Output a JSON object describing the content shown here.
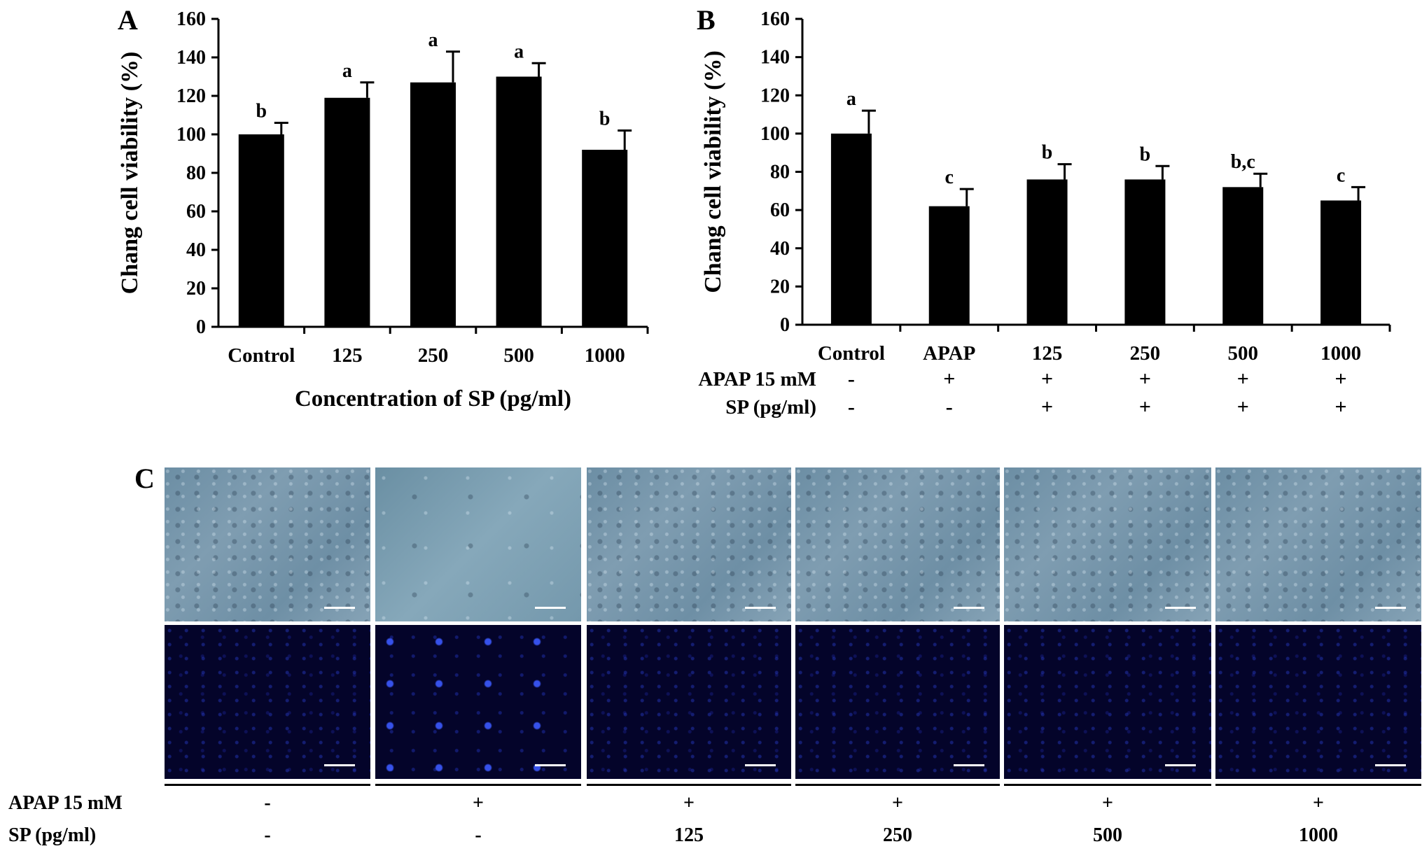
{
  "chart_data": [
    {
      "type": "bar",
      "panel_label": "A",
      "categories": [
        "Control",
        "125",
        "250",
        "500",
        "1000"
      ],
      "values": [
        100,
        119,
        127,
        130,
        92
      ],
      "errors": [
        6,
        8,
        16,
        7,
        10
      ],
      "significance": [
        "b",
        "a",
        "a",
        "a",
        "b"
      ],
      "xlabel": "Concentration of SP (pg/ml)",
      "ylabel": "Chang cell viability (%)",
      "ylim": [
        0,
        160
      ],
      "yticks": [
        "0",
        "20",
        "40",
        "60",
        "80",
        "100",
        "120",
        "140",
        "160"
      ],
      "bar_color": "#000000"
    },
    {
      "type": "bar",
      "panel_label": "B",
      "categories": [
        "Control",
        "APAP",
        "125",
        "250",
        "500",
        "1000"
      ],
      "values": [
        100,
        62,
        76,
        76,
        72,
        65
      ],
      "errors": [
        12,
        9,
        8,
        7,
        7,
        7
      ],
      "significance": [
        "a",
        "c",
        "b",
        "b",
        "b,c",
        "c"
      ],
      "xlabel": "",
      "ylabel": "Chang cell viability (%)",
      "ylim": [
        0,
        160
      ],
      "yticks": [
        "0",
        "20",
        "40",
        "60",
        "80",
        "100",
        "120",
        "140",
        "160"
      ],
      "treatment_rows": [
        {
          "label": "APAP  15 mM",
          "marks": [
            "-",
            "+",
            "+",
            "+",
            "+",
            "+"
          ]
        },
        {
          "label": "SP (pg/ml)",
          "marks": [
            "-",
            "-",
            "+",
            "+",
            "+",
            "+"
          ]
        }
      ],
      "bar_color": "#000000"
    }
  ],
  "panel_c": {
    "panel_label": "C",
    "rows": [
      {
        "label": "APAP 15 mM",
        "values": [
          "-",
          "+",
          "+",
          "+",
          "+",
          "+"
        ]
      },
      {
        "label": "SP (pg/ml)",
        "values": [
          "-",
          "-",
          "125",
          "250",
          "500",
          "1000"
        ]
      }
    ],
    "image_rows": [
      "phase-contrast",
      "fluorescence"
    ]
  }
}
